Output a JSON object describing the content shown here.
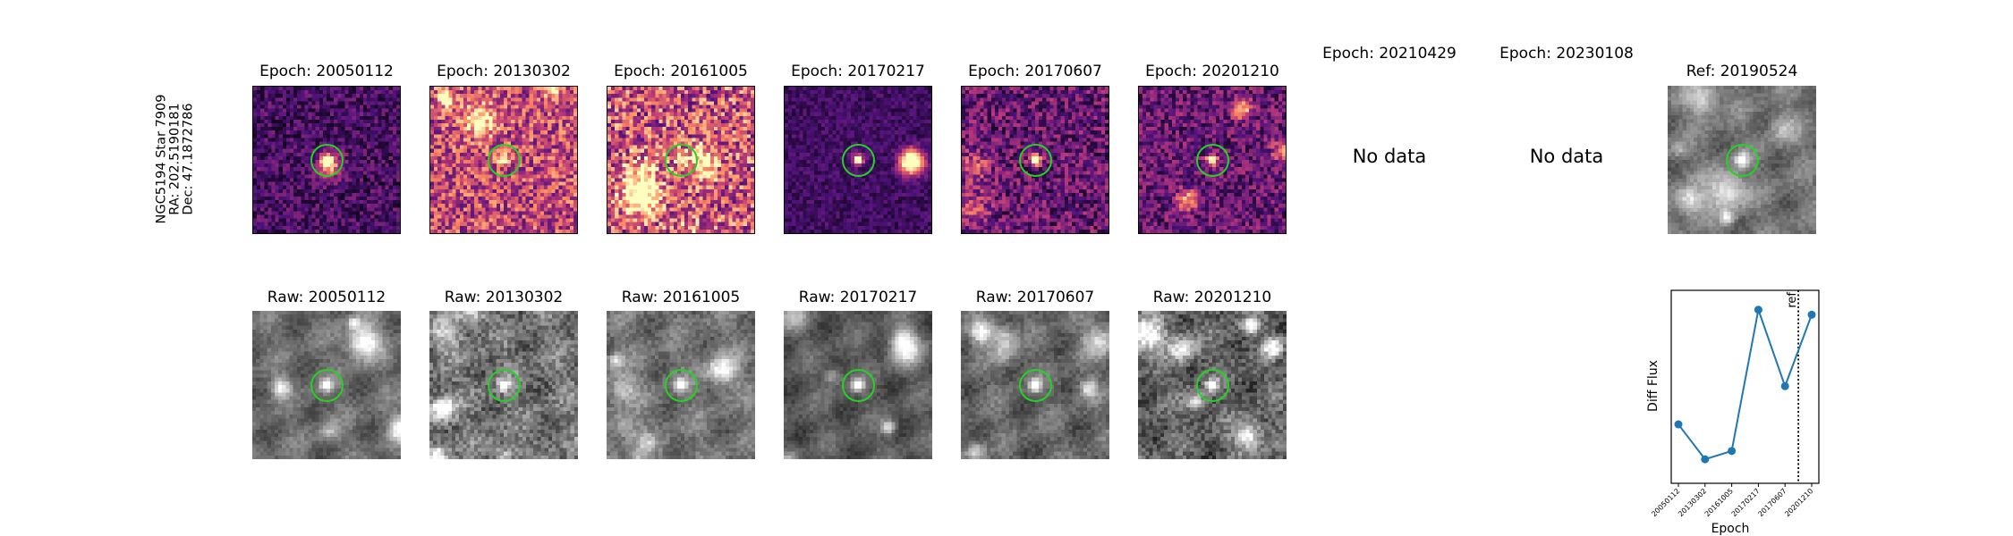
{
  "star": {
    "line1": "NGC5194 Star 7909",
    "line2": "RA: 202.5190181",
    "line3": "Dec: 47.1872786"
  },
  "diff_titles": [
    "Epoch: 20050112",
    "Epoch: 20130302",
    "Epoch: 20161005",
    "Epoch: 20170217",
    "Epoch: 20170607",
    "Epoch: 20201210"
  ],
  "nodata_titles": [
    "Epoch: 20210429",
    "Epoch: 20230108"
  ],
  "nodata_text": "No data",
  "ref_title": "Ref: 20190524",
  "raw_titles": [
    "Raw: 20050112",
    "Raw: 20130302",
    "Raw: 20161005",
    "Raw: 20170217",
    "Raw: 20170607",
    "Raw: 20201210"
  ],
  "colors": {
    "marker_circle": "#22d322",
    "series": "#1f77b4"
  },
  "chart_data": {
    "type": "line",
    "xlabel": "Epoch",
    "ylabel": "Diff Flux",
    "categories": [
      "20050112",
      "20130302",
      "20161005",
      "20170217",
      "20170607",
      "20201210"
    ],
    "values": [
      0.29,
      0.08,
      0.13,
      0.98,
      0.52,
      0.95
    ],
    "ylim": [
      0,
      1
    ],
    "marker": "circle",
    "vline": {
      "after_category": "20170607",
      "label": "ref",
      "style": "dotted"
    }
  }
}
